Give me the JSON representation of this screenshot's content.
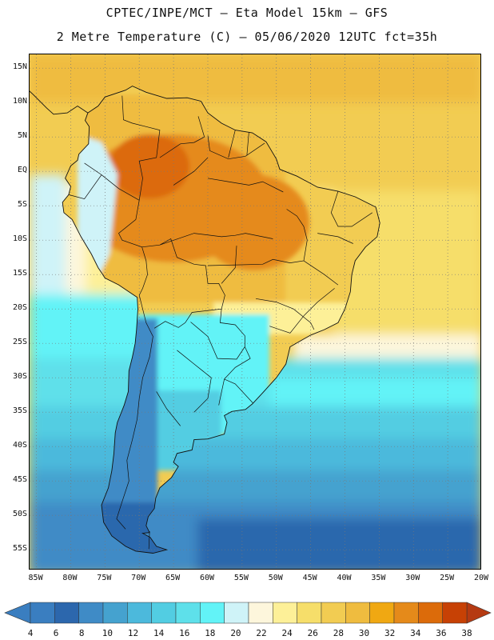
{
  "header": {
    "line1": "CPTEC/INPE/MCT –  Eta Model 15km – GFS",
    "line2": "2 Metre Temperature (C) – 05/06/2020 12UTC fct=35h"
  },
  "map": {
    "lat_labels": [
      "15N",
      "10N",
      "5N",
      "EQ",
      "5S",
      "10S",
      "15S",
      "20S",
      "25S",
      "30S",
      "35S",
      "40S",
      "45S",
      "50S",
      "55S"
    ],
    "lat_values": [
      15,
      10,
      5,
      0,
      -5,
      -10,
      -15,
      -20,
      -25,
      -30,
      -35,
      -40,
      -45,
      -50,
      -55
    ],
    "lon_labels": [
      "85W",
      "80W",
      "75W",
      "70W",
      "65W",
      "60W",
      "55W",
      "50W",
      "45W",
      "40W",
      "35W",
      "30W",
      "25W",
      "20W"
    ],
    "lon_values": [
      -85,
      -80,
      -75,
      -70,
      -65,
      -60,
      -55,
      -50,
      -45,
      -40,
      -35,
      -30,
      -25,
      -20
    ],
    "lat_range": [
      -58,
      17
    ],
    "lon_range": [
      -86,
      -20
    ]
  },
  "legend": {
    "labels": [
      "4",
      "6",
      "8",
      "10",
      "12",
      "14",
      "16",
      "18",
      "20",
      "22",
      "24",
      "26",
      "28",
      "30",
      "32",
      "34",
      "36",
      "38"
    ],
    "colors": [
      "#3a7ec0",
      "#2c67ad",
      "#3f8bc6",
      "#45a2cf",
      "#4cb9dc",
      "#52cde2",
      "#5ee0ea",
      "#62f3f7",
      "#cff3f8",
      "#fdf6dc",
      "#fdf098",
      "#f6de6a",
      "#f2cc52",
      "#efbc3f",
      "#f0a812",
      "#e58a1a",
      "#dc6b0a",
      "#c74105"
    ],
    "low_end_color": "#3a7ec0",
    "high_end_color": "#b53a12",
    "values": [
      4,
      6,
      8,
      10,
      12,
      14,
      16,
      18,
      20,
      22,
      24,
      26,
      28,
      30,
      32,
      34,
      36,
      38
    ]
  }
}
